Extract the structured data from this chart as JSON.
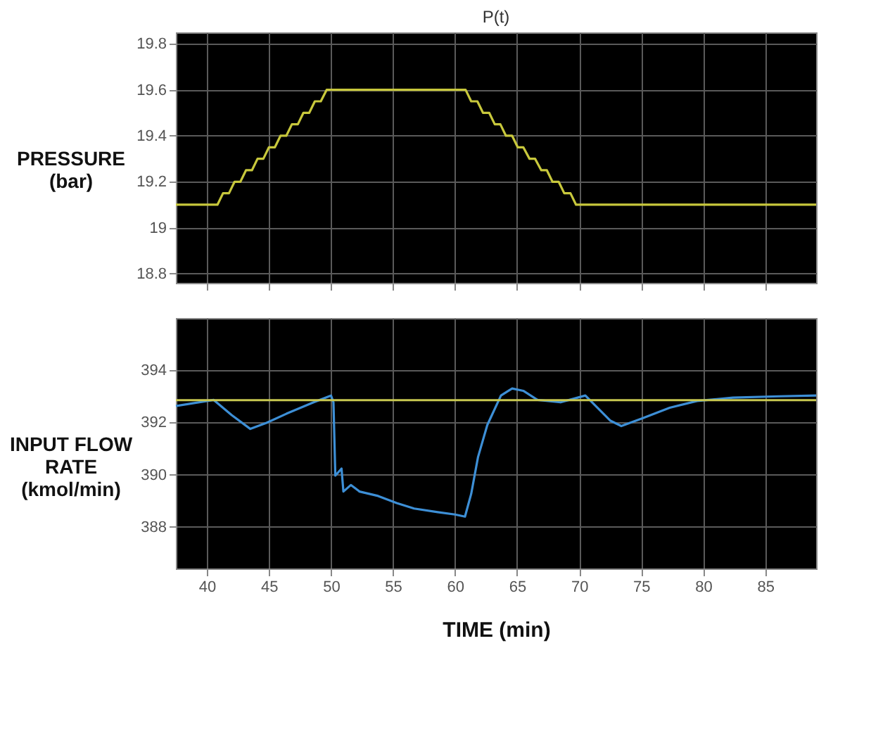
{
  "chart_data": [
    {
      "type": "line",
      "title": "P(t)",
      "ylabel": "PRESSURE (bar)",
      "xlim": [
        37.5,
        89.1
      ],
      "ylim": [
        18.76,
        19.85
      ],
      "xticks": [
        40,
        45,
        50,
        55,
        60,
        65,
        70,
        75,
        80,
        85
      ],
      "yticks": [
        18.8,
        19,
        19.2,
        19.4,
        19.6,
        19.8
      ],
      "grid": true,
      "tick_labels": "y",
      "series": [
        {
          "color": "#c8c83c",
          "x": [
            37.5,
            40.85,
            41.3,
            41.78,
            42.23,
            42.7,
            43.15,
            43.63,
            44.08,
            44.55,
            45.0,
            45.48,
            45.93,
            46.4,
            46.85,
            47.33,
            47.78,
            48.25,
            48.7,
            49.18,
            49.65,
            60.85,
            61.3,
            61.8,
            62.25,
            62.75,
            63.2,
            63.65,
            64.1,
            64.6,
            65.05,
            65.5,
            66.0,
            66.45,
            66.95,
            67.4,
            67.85,
            68.35,
            68.8,
            69.3,
            69.75,
            89.1
          ],
          "values": [
            19.1,
            19.1,
            19.15,
            19.15,
            19.2,
            19.2,
            19.25,
            19.25,
            19.3,
            19.3,
            19.35,
            19.35,
            19.4,
            19.4,
            19.45,
            19.45,
            19.5,
            19.5,
            19.55,
            19.55,
            19.6,
            19.6,
            19.55,
            19.55,
            19.5,
            19.5,
            19.45,
            19.45,
            19.4,
            19.4,
            19.35,
            19.35,
            19.3,
            19.3,
            19.25,
            19.25,
            19.2,
            19.2,
            19.15,
            19.15,
            19.1,
            19.1
          ]
        }
      ]
    },
    {
      "type": "line",
      "ylabel": "INPUT FLOW RATE (kmol/min)",
      "xlabel": "TIME (min)",
      "xlim": [
        37.5,
        89.1
      ],
      "ylim": [
        386.4,
        396
      ],
      "xticks": [
        40,
        45,
        50,
        55,
        60,
        65,
        70,
        75,
        80,
        85
      ],
      "yticks": [
        388,
        390,
        392,
        394
      ],
      "grid": true,
      "ref_lines": [
        {
          "axis": "y",
          "value": 392.85,
          "color": "#c8c850"
        }
      ],
      "series": [
        {
          "color": "#3d8fd6",
          "x": [
            37.5,
            40.55,
            42.0,
            43.5,
            44.8,
            46.4,
            48.6,
            50.0,
            50.2,
            50.35,
            50.85,
            51.0,
            51.6,
            52.3,
            53.8,
            55.3,
            56.7,
            58.6,
            60.0,
            60.8,
            61.3,
            61.85,
            62.6,
            63.7,
            64.6,
            65.5,
            66.65,
            68.5,
            70.5,
            71.4,
            72.5,
            73.4,
            75.1,
            77.3,
            79.5,
            82.4,
            86.1,
            89.1
          ],
          "values": [
            392.63,
            392.86,
            392.28,
            391.75,
            391.98,
            392.33,
            392.77,
            393.03,
            392.77,
            389.96,
            390.23,
            389.35,
            389.6,
            389.35,
            389.18,
            388.91,
            388.7,
            388.56,
            388.47,
            388.39,
            389.26,
            390.67,
            391.9,
            393.03,
            393.3,
            393.21,
            392.86,
            392.77,
            393.03,
            392.6,
            392.07,
            391.86,
            392.16,
            392.56,
            392.82,
            392.95,
            393.0,
            393.03
          ]
        }
      ]
    }
  ]
}
